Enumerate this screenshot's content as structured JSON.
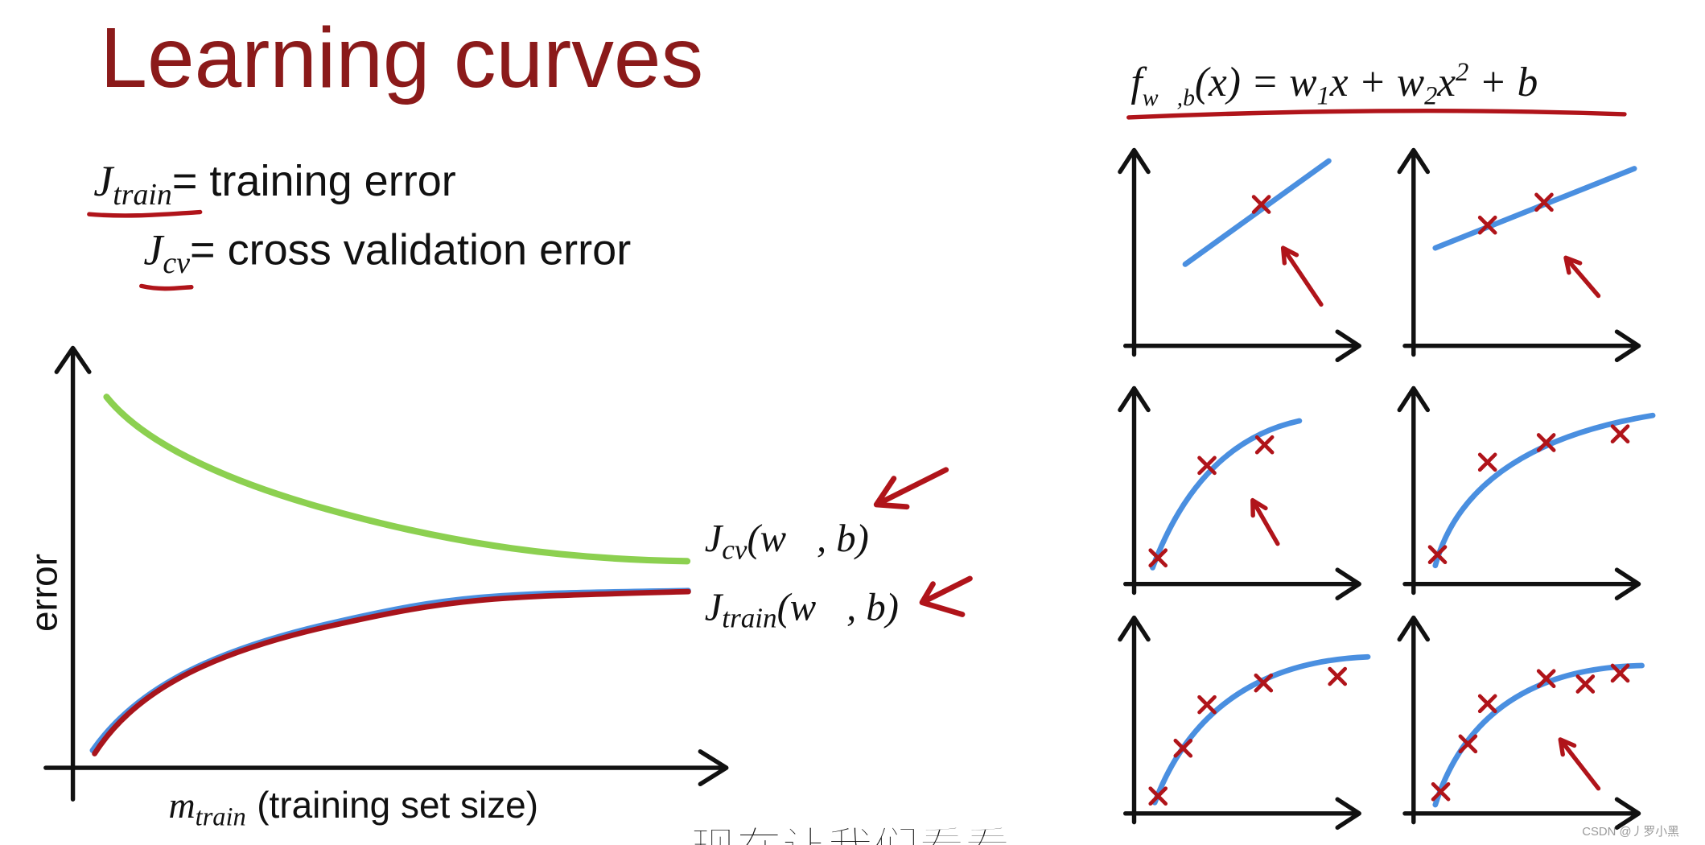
{
  "title": "Learning curves",
  "definitions": [
    {
      "symbol": "J",
      "subscript": "train",
      "text": "= training error"
    },
    {
      "symbol": "J",
      "subscript": "cv",
      "text": "= cross validation error"
    }
  ],
  "main_plot": {
    "y_label": "error",
    "x_label": {
      "symbol": "m",
      "subscript": "train",
      "text": "(training set size)"
    },
    "curves": [
      {
        "symbol": "J",
        "subscript": "cv",
        "args": "(w⃗, b)"
      },
      {
        "symbol": "J",
        "subscript": "train",
        "args": "(w⃗, b)"
      }
    ]
  },
  "formula": [
    "f",
    "w⃗,b",
    "(x) = w",
    "1",
    "x + w",
    "2",
    "x",
    "2",
    " + b"
  ],
  "subtitle": "现在让我们看看",
  "watermark": "CSDN @丿罗小黑"
}
